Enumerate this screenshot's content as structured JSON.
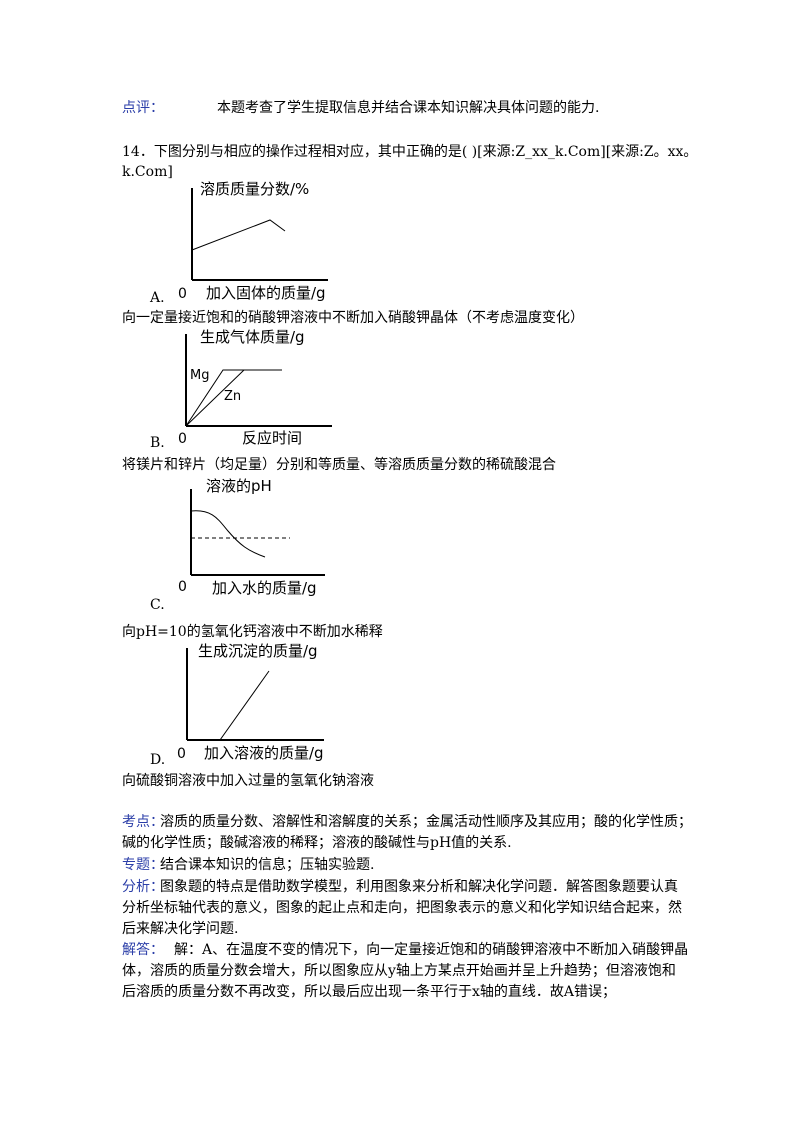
{
  "comment": {
    "label": "点评：",
    "text": "本题考查了学生提取信息并结合课本知识解决具体问题的能力."
  },
  "question": {
    "line1": "14．下图分别与相应的操作过程相对应，其中正确的是(     )[来源:Z_xx_k.Com][来源:Z。xx。",
    "line2": "k.Com]"
  },
  "options": [
    {
      "letter": "A.",
      "caption": "向一定量接近饱和的硝酸钾溶液中不断加入硝酸钾晶体（不考虑温度变化）",
      "ylabel": "溶质质量分数/%",
      "xlabel": "加入固体的质量/g",
      "origin": "0"
    },
    {
      "letter": "B.",
      "caption": "将镁片和锌片（均足量）分别和等质量、等溶质质量分数的稀硫酸混合",
      "ylabel": "生成气体质量/g",
      "xlabel": "反应时间",
      "origin": "0",
      "series": [
        "Mg",
        "Zn"
      ]
    },
    {
      "letter": "C.",
      "caption": "向pH=10的氢氧化钙溶液中不断加水稀释",
      "ylabel": "溶液的pH",
      "xlabel": "加入水的质量/g",
      "origin": "0"
    },
    {
      "letter": "D.",
      "caption": "向硫酸铜溶液中加入过量的氢氧化钠溶液",
      "ylabel": "生成沉淀的质量/g",
      "xlabel": "加入溶液的质量/g",
      "origin": "0"
    }
  ],
  "analysis": {
    "kaodian_label": "考点：",
    "kaodian_line1": "溶质的质量分数、溶解性和溶解度的关系；金属活动性顺序及其应用；酸的化学性质；",
    "kaodian_line2": "碱的化学性质；酸碱溶液的稀释；溶液的酸碱性与pH值的关系.",
    "zhuanti_label": "专题：",
    "zhuanti_text": "结合课本知识的信息；压轴实验题.",
    "fenxi_label": "分析：",
    "fenxi_line1": "图象题的特点是借助数学模型，利用图象来分析和解决化学问题．解答图象题要认真",
    "fenxi_line2": "分析坐标轴代表的意义，图象的起止点和走向，把图象表示的意义和化学知识结合起来，然",
    "fenxi_line3": "后来解决化学问题.",
    "jieda_label": "解答：",
    "jieda_line1": "解：A、在温度不变的情况下，向一定量接近饱和的硝酸钾溶液中不断加入硝酸钾晶",
    "jieda_line2": "体，溶质的质量分数会增大，所以图象应从y轴上方某点开始画并呈上升趋势；但溶液饱和",
    "jieda_line3": "后溶质的质量分数不再改变，所以最后应出现一条平行于x轴的直线．故A错误；"
  }
}
